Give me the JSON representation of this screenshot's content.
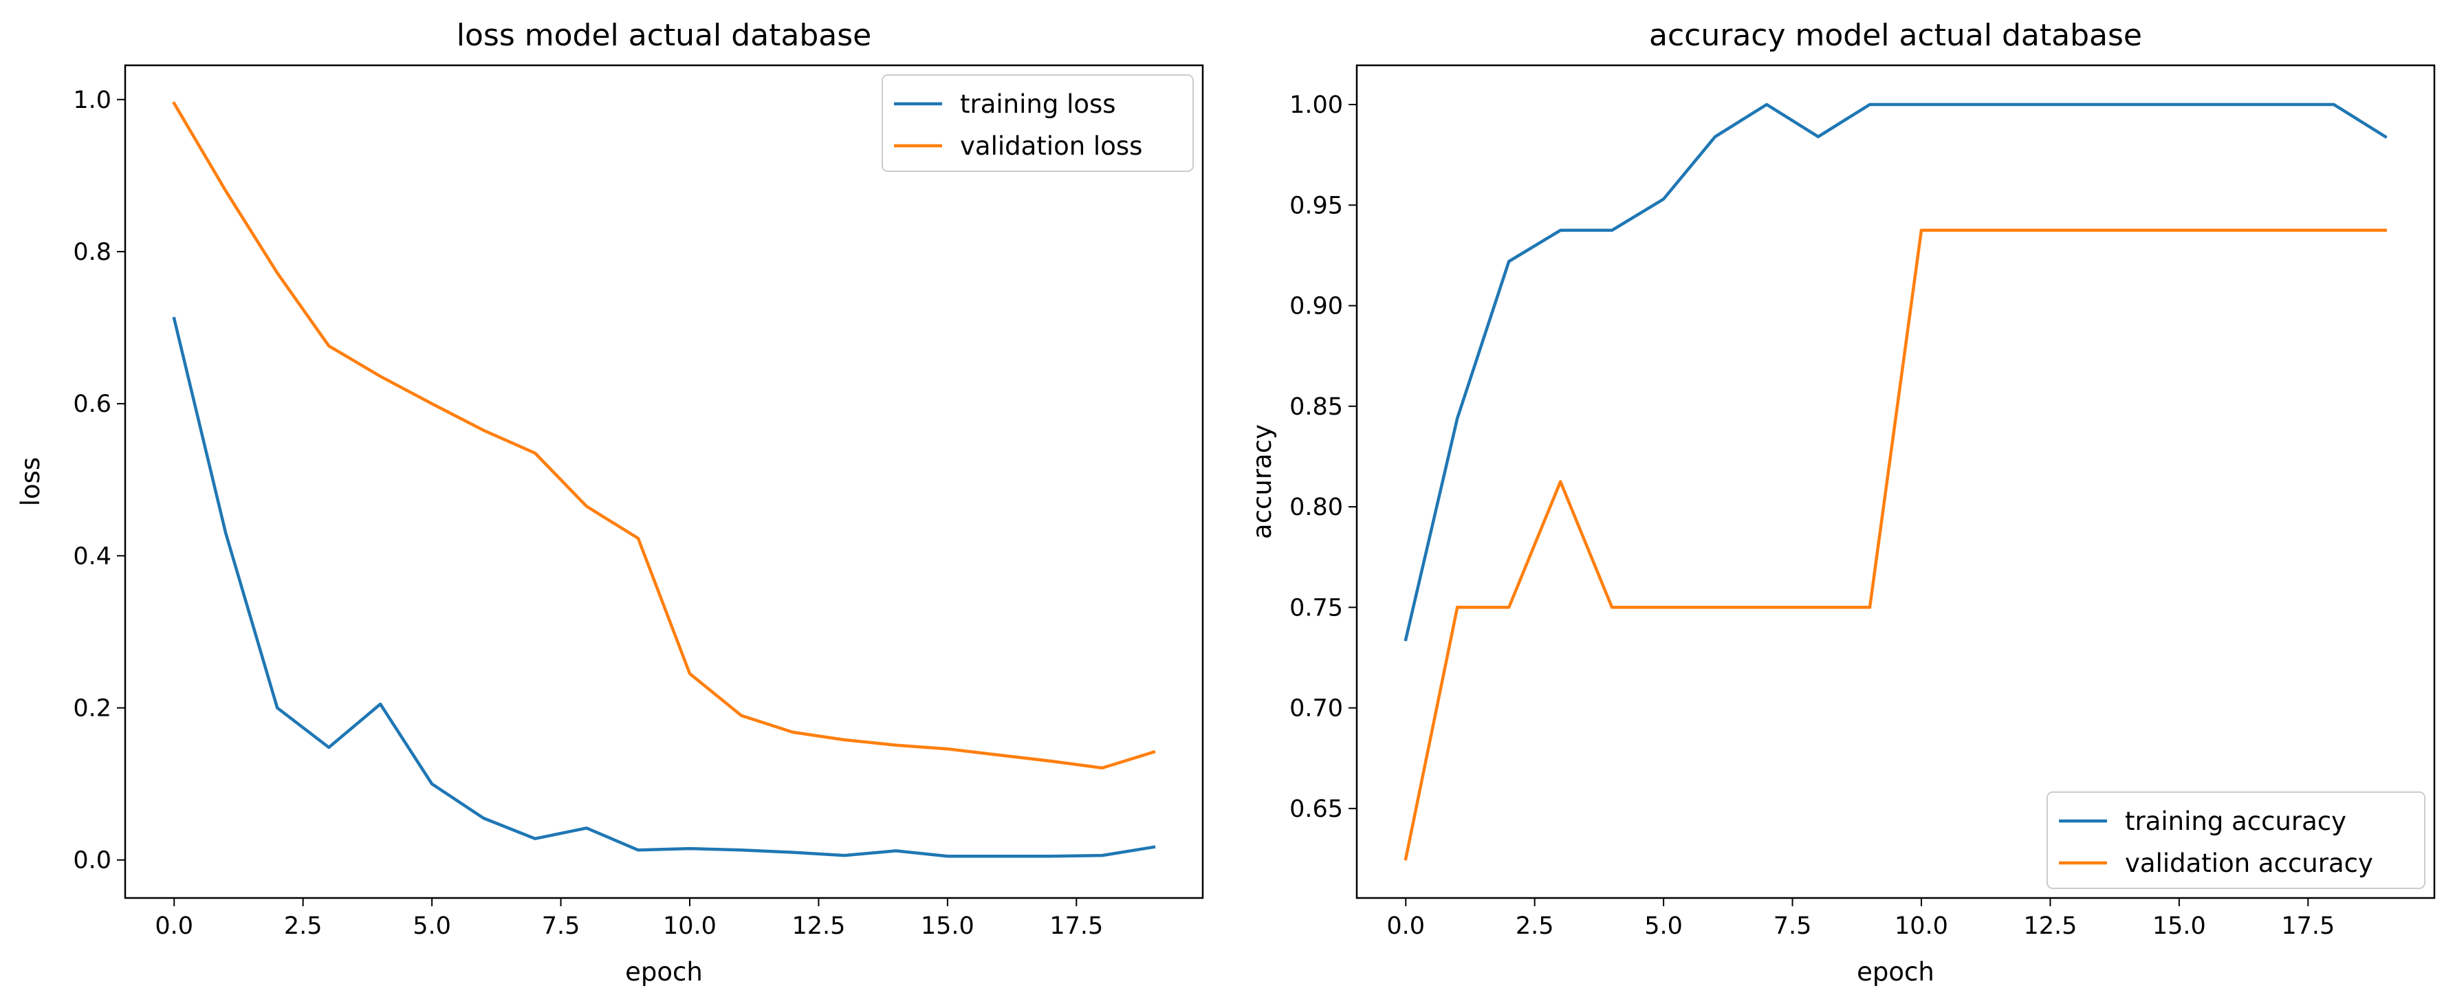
{
  "colors": {
    "training": "#1f77b4",
    "validation": "#ff7f0e"
  },
  "chart_data": [
    {
      "type": "line",
      "title": "loss model actual database",
      "xlabel": "epoch",
      "ylabel": "loss",
      "xlim": [
        -0.95,
        19.95
      ],
      "ylim": [
        -0.05,
        1.045
      ],
      "xticks": [
        0.0,
        2.5,
        5.0,
        7.5,
        10.0,
        12.5,
        15.0,
        17.5
      ],
      "xtick_labels": [
        "0.0",
        "2.5",
        "5.0",
        "7.5",
        "10.0",
        "12.5",
        "15.0",
        "17.5"
      ],
      "yticks": [
        0.0,
        0.2,
        0.4,
        0.6,
        0.8,
        1.0
      ],
      "ytick_labels": [
        "0.0",
        "0.2",
        "0.4",
        "0.6",
        "0.8",
        "1.0"
      ],
      "grid": false,
      "legend_position": "top-right",
      "x": [
        0,
        1,
        2,
        3,
        4,
        5,
        6,
        7,
        8,
        9,
        10,
        11,
        12,
        13,
        14,
        15,
        16,
        17,
        18,
        19
      ],
      "series": [
        {
          "name": "training loss",
          "color": "#1f77b4",
          "values": [
            0.712,
            0.43,
            0.2,
            0.148,
            0.205,
            0.1,
            0.055,
            0.028,
            0.042,
            0.013,
            0.015,
            0.013,
            0.01,
            0.006,
            0.012,
            0.005,
            0.005,
            0.005,
            0.006,
            0.017
          ]
        },
        {
          "name": "validation loss",
          "color": "#ff7f0e",
          "values": [
            0.995,
            0.88,
            0.772,
            0.676,
            0.636,
            0.6,
            0.565,
            0.535,
            0.465,
            0.423,
            0.245,
            0.19,
            0.168,
            0.158,
            0.151,
            0.146,
            0.138,
            0.13,
            0.121,
            0.142
          ]
        }
      ]
    },
    {
      "type": "line",
      "title": "accuracy model actual database",
      "xlabel": "epoch",
      "ylabel": "accuracy",
      "xlim": [
        -0.95,
        19.95
      ],
      "ylim": [
        0.6055,
        1.0195
      ],
      "xticks": [
        0.0,
        2.5,
        5.0,
        7.5,
        10.0,
        12.5,
        15.0,
        17.5
      ],
      "xtick_labels": [
        "0.0",
        "2.5",
        "5.0",
        "7.5",
        "10.0",
        "12.5",
        "15.0",
        "17.5"
      ],
      "yticks": [
        0.65,
        0.7,
        0.75,
        0.8,
        0.85,
        0.9,
        0.95,
        1.0
      ],
      "ytick_labels": [
        "0.65",
        "0.70",
        "0.75",
        "0.80",
        "0.85",
        "0.90",
        "0.95",
        "1.00"
      ],
      "grid": false,
      "legend_position": "bottom-right",
      "x": [
        0,
        1,
        2,
        3,
        4,
        5,
        6,
        7,
        8,
        9,
        10,
        11,
        12,
        13,
        14,
        15,
        16,
        17,
        18,
        19
      ],
      "series": [
        {
          "name": "training accuracy",
          "color": "#1f77b4",
          "values": [
            0.734,
            0.844,
            0.922,
            0.9375,
            0.9375,
            0.953,
            0.984,
            1.0,
            0.984,
            1.0,
            1.0,
            1.0,
            1.0,
            1.0,
            1.0,
            1.0,
            1.0,
            1.0,
            1.0,
            0.984
          ]
        },
        {
          "name": "validation accuracy",
          "color": "#ff7f0e",
          "values": [
            0.625,
            0.75,
            0.75,
            0.8125,
            0.75,
            0.75,
            0.75,
            0.75,
            0.75,
            0.75,
            0.9375,
            0.9375,
            0.9375,
            0.9375,
            0.9375,
            0.9375,
            0.9375,
            0.9375,
            0.9375,
            0.9375
          ]
        }
      ]
    }
  ]
}
